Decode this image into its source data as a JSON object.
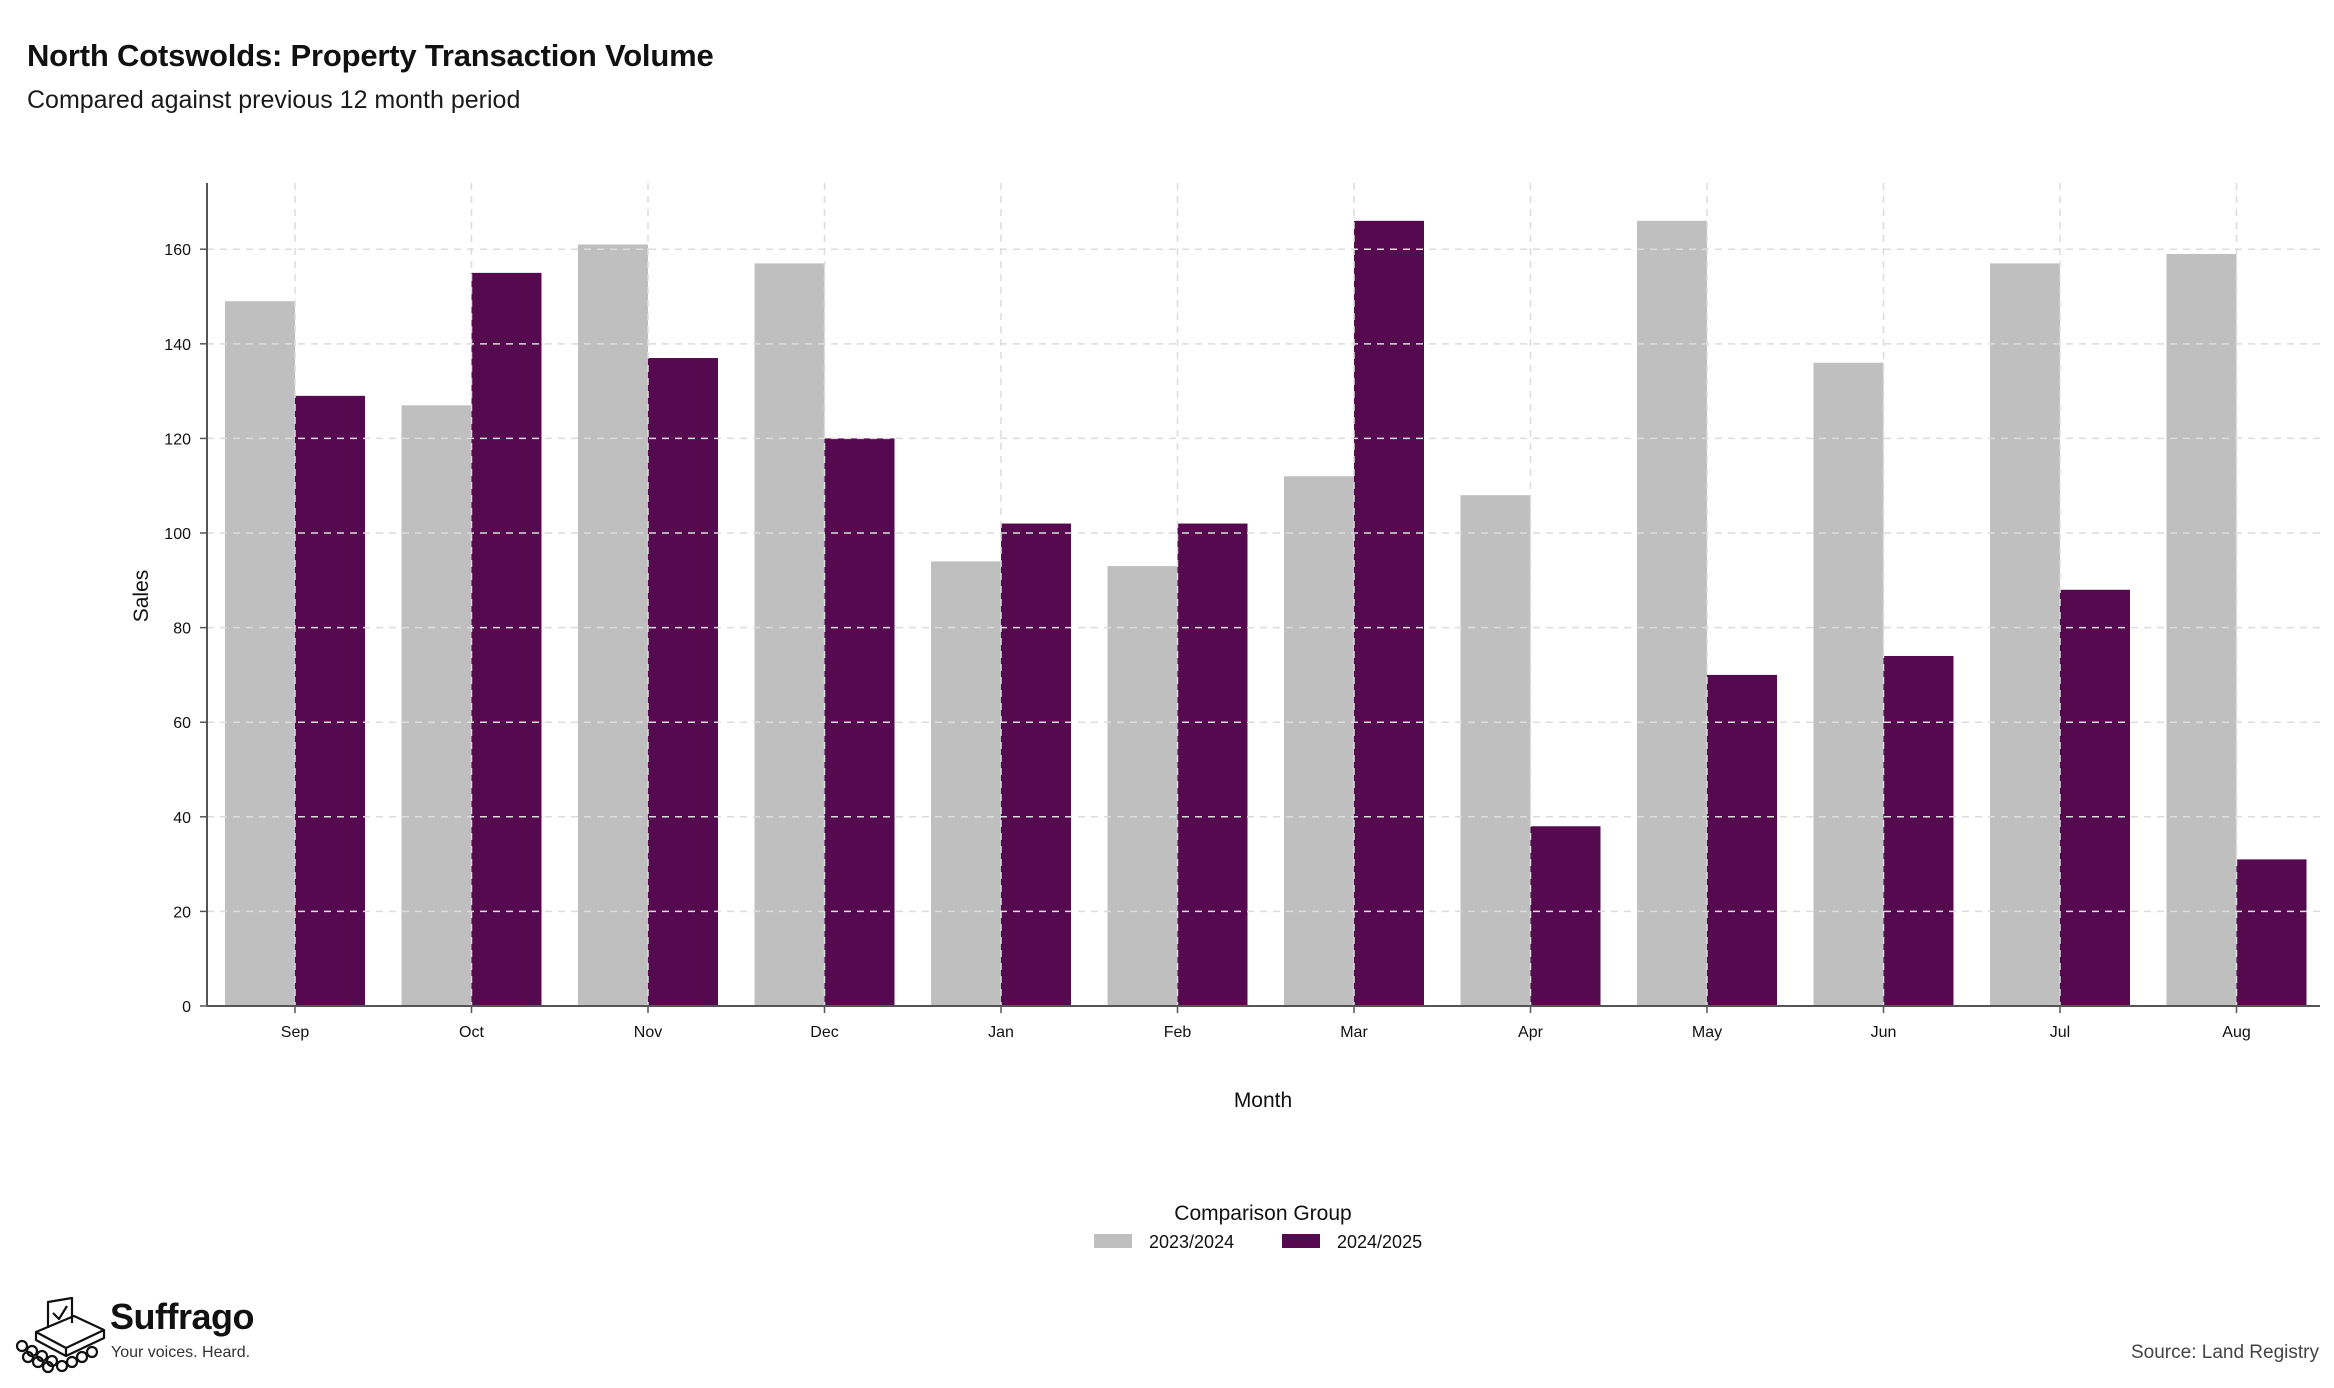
{
  "chart_data": {
    "type": "bar",
    "title": "North Cotswolds: Property Transaction Volume",
    "subtitle": "Compared against previous 12 month period",
    "xlabel": "Month",
    "ylabel": "Sales",
    "categories": [
      "Sep",
      "Oct",
      "Nov",
      "Dec",
      "Jan",
      "Feb",
      "Mar",
      "Apr",
      "May",
      "Jun",
      "Jul",
      "Aug"
    ],
    "series": [
      {
        "name": "2023/2024",
        "color": "#bfbfbf",
        "values": [
          149,
          127,
          161,
          157,
          94,
          93,
          112,
          108,
          166,
          136,
          157,
          159
        ]
      },
      {
        "name": "2024/2025",
        "color": "#550a50",
        "values": [
          129,
          155,
          137,
          120,
          102,
          102,
          166,
          38,
          70,
          74,
          88,
          31
        ]
      }
    ],
    "ylim": [
      0,
      174
    ],
    "yticks": [
      0,
      20,
      40,
      60,
      80,
      100,
      120,
      140,
      160
    ],
    "grid": true,
    "legend": {
      "title": "Comparison Group",
      "position": "bottom"
    },
    "source": "Source: Land Registry"
  },
  "branding": {
    "name": "Suffrago",
    "tagline": "Your voices. Heard.",
    "logo_icon": "ballot-box-icon"
  }
}
